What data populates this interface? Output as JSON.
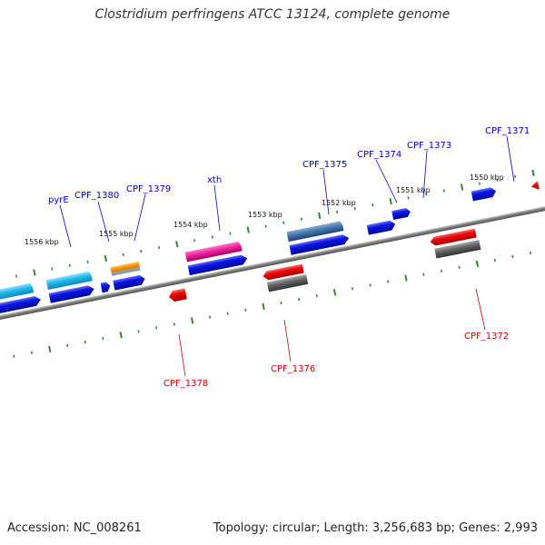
{
  "title": "Clostridium perfringens ATCC 13124, complete genome",
  "footer": {
    "accession": "Accession: NC_008261",
    "topology": "Topology: circular; Length: 3,256,683 bp; Genes: 2,993"
  },
  "colors": {
    "backbone": "#8a8a8a",
    "tick": "#2e8b2e",
    "label_forward": "#0000cc",
    "label_reverse": "#cc0000",
    "cds": "#0a14e6",
    "gene_forward": "#33c4ee",
    "gene_reverse": "#ee1111",
    "rna_grey": "#666666",
    "orange": "#ff9900",
    "pink": "#ee2299",
    "steel": "#4477aa"
  },
  "scale_labels": [
    "1556 kbp",
    "1555 kbp",
    "1554 kbp",
    "1553 kbp",
    "1552 kbp",
    "1551 kbp",
    "1550 kbp"
  ],
  "forward_labels": [
    "pyrE",
    "CPF_1380",
    "CPF_1379",
    "xth",
    "CPF_1375",
    "CPF_1374",
    "CPF_1373",
    "CPF_1371"
  ],
  "reverse_labels": [
    "CPF_1378",
    "CPF_1376",
    "CPF_1372"
  ]
}
